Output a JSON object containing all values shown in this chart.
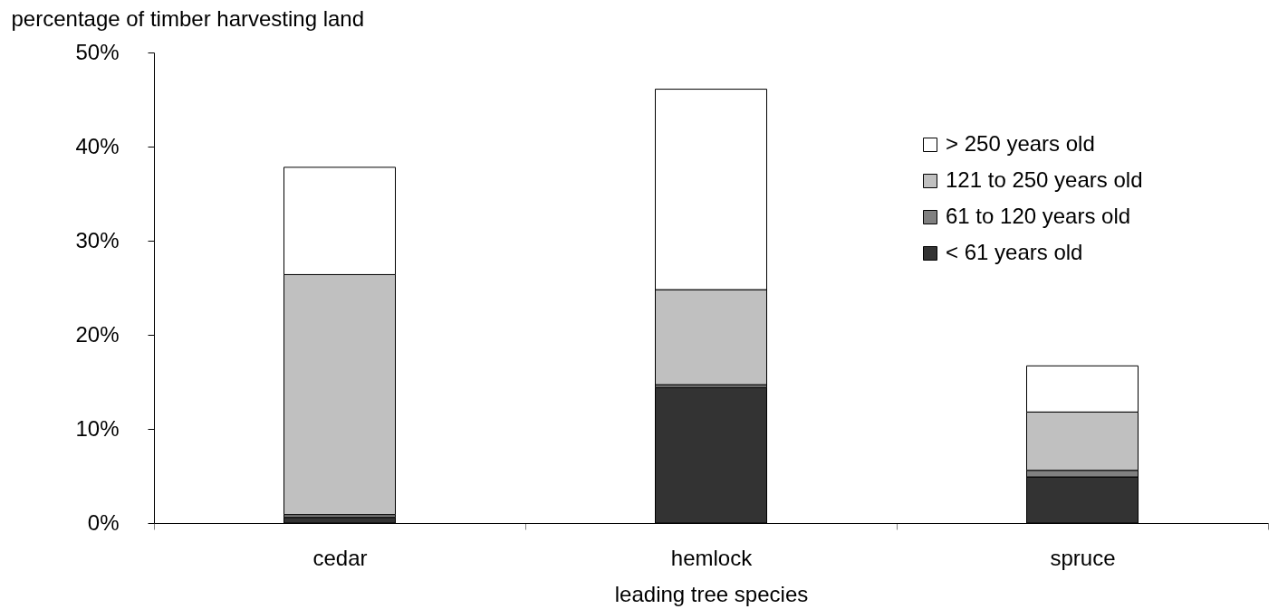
{
  "chart_data": {
    "type": "bar",
    "stacked": true,
    "ylabel": "percentage of timber harvesting land",
    "xlabel": "leading tree species",
    "categories": [
      "cedar",
      "hemlock",
      "spruce"
    ],
    "series": [
      {
        "name": "< 61 years old",
        "color": "#333333",
        "values": [
          0.6,
          14.4,
          4.9
        ]
      },
      {
        "name": "61 to 120 years old",
        "color": "#808080",
        "values": [
          0.3,
          0.3,
          0.7
        ]
      },
      {
        "name": "121 to 250 years old",
        "color": "#c0c0c0",
        "values": [
          25.5,
          10.1,
          6.2
        ]
      },
      {
        "name": "> 250 years old",
        "color": "#ffffff",
        "values": [
          11.4,
          21.3,
          4.9
        ]
      }
    ],
    "ylim": [
      0,
      50
    ],
    "yticks": [
      {
        "value": 0,
        "label": "0%"
      },
      {
        "value": 10,
        "label": "10%"
      },
      {
        "value": 20,
        "label": "20%"
      },
      {
        "value": 30,
        "label": "30%"
      },
      {
        "value": 40,
        "label": "40%"
      },
      {
        "value": 50,
        "label": "50%"
      }
    ],
    "grid": false,
    "legend": "top right"
  }
}
